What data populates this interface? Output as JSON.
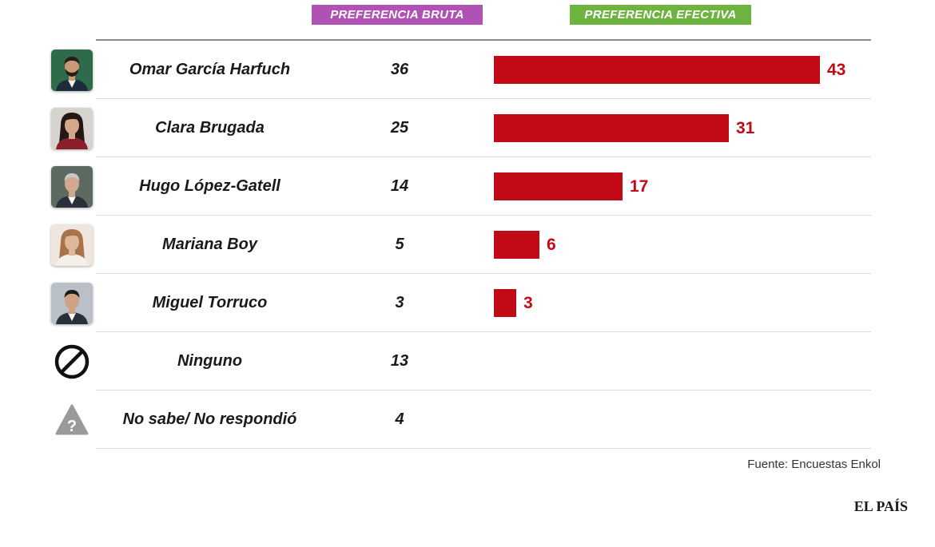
{
  "headers": {
    "bruta": "PREFERENCIA BRUTA",
    "efectiva": "PREFERENCIA EFECTIVA",
    "bruta_color": "#b052b4",
    "efectiva_color": "#6cb33f"
  },
  "chart_data": {
    "type": "bar",
    "orientation": "horizontal",
    "bar_color": "#c20a16",
    "max_value": 43,
    "rows": [
      {
        "name": "Omar García Harfuch",
        "bruta": "36",
        "efectiva": 43,
        "efectiva_label": "43",
        "icon": "photo-man-beard"
      },
      {
        "name": "Clara Brugada",
        "bruta": "25",
        "efectiva": 31,
        "efectiva_label": "31",
        "icon": "photo-woman-dark-hair"
      },
      {
        "name": "Hugo López-Gatell",
        "bruta": "14",
        "efectiva": 17,
        "efectiva_label": "17",
        "icon": "photo-man-gray-hair"
      },
      {
        "name": "Mariana Boy",
        "bruta": "5",
        "efectiva": 6,
        "efectiva_label": "6",
        "icon": "photo-woman-light-hair"
      },
      {
        "name": "Miguel Torruco",
        "bruta": "3",
        "efectiva": 3,
        "efectiva_label": "3",
        "icon": "photo-man-suit"
      },
      {
        "name": "Ninguno",
        "bruta": "13",
        "efectiva": null,
        "efectiva_label": "",
        "icon": "prohibited-icon"
      },
      {
        "name": "No sabe/ No respondió",
        "bruta": "4",
        "efectiva": null,
        "efectiva_label": "",
        "icon": "warning-question-icon"
      }
    ]
  },
  "footer": {
    "source": "Fuente: Encuestas Enkol",
    "brand": "EL PAÍS"
  }
}
